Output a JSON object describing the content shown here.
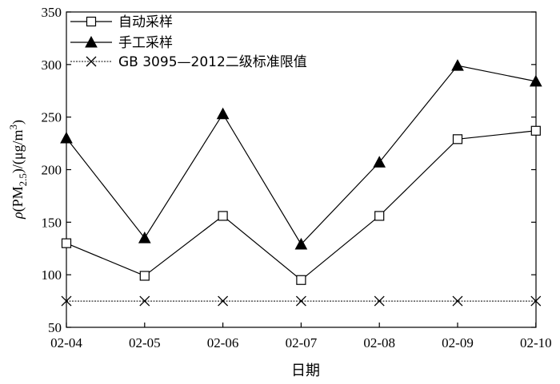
{
  "chart_data": {
    "type": "line",
    "xlabel": "日期",
    "ylabel_parts": {
      "rho": "ρ",
      "open": "(PM",
      "sub": "2.5",
      "mid": ")/(μg/m",
      "sup": "3",
      "close": ")"
    },
    "categories": [
      "02-04",
      "02-05",
      "02-06",
      "02-07",
      "02-08",
      "02-09",
      "02-10"
    ],
    "ylim": [
      50,
      350
    ],
    "yticks": [
      "50",
      "100",
      "150",
      "200",
      "250",
      "300",
      "350"
    ],
    "series": [
      {
        "name": "自动采样",
        "marker": "open-square",
        "values": [
          130,
          99,
          156,
          95,
          156,
          229,
          237
        ]
      },
      {
        "name": "手工采样",
        "marker": "filled-triangle",
        "values": [
          230,
          135,
          253,
          129,
          207,
          299,
          284
        ]
      },
      {
        "name": "GB 3095—2012二级标准限值",
        "marker": "x",
        "values": [
          75,
          75,
          75,
          75,
          75,
          75,
          75
        ]
      }
    ],
    "legend_position": "top-left",
    "grid": false
  }
}
